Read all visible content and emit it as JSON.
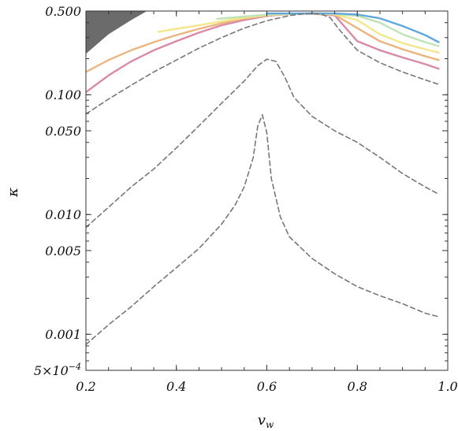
{
  "chart_data": {
    "type": "line",
    "xlabel": "v",
    "xlabel_subscript": "w",
    "ylabel": "κ",
    "x_scale": "linear",
    "y_scale": "log",
    "xlim": [
      0.2,
      1.0
    ],
    "ylim": [
      0.0005,
      0.5
    ],
    "grid": false,
    "x_ticks": [
      {
        "value": 0.2,
        "label": "0.2"
      },
      {
        "value": 0.4,
        "label": "0.4"
      },
      {
        "value": 0.6,
        "label": "0.6"
      },
      {
        "value": 0.8,
        "label": "0.8"
      },
      {
        "value": 1.0,
        "label": "1.0"
      }
    ],
    "y_ticks": [
      {
        "value": 0.5,
        "label": "0.500"
      },
      {
        "value": 0.1,
        "label": "0.100"
      },
      {
        "value": 0.05,
        "label": "0.050"
      },
      {
        "value": 0.01,
        "label": "0.010"
      },
      {
        "value": 0.005,
        "label": "0.005"
      },
      {
        "value": 0.001,
        "label": "0.001"
      },
      {
        "value": 0.0005,
        "label": "5×10",
        "label_exp": "−4"
      }
    ],
    "shaded_region": {
      "color": "#6b6b6b",
      "boundary": [
        [
          0.2,
          0.22
        ],
        [
          0.25,
          0.32
        ],
        [
          0.3,
          0.42
        ],
        [
          0.335,
          0.5
        ]
      ]
    },
    "series": [
      {
        "style": "solid",
        "color": "#d98aa8",
        "points": [
          [
            0.2,
            0.105
          ],
          [
            0.25,
            0.145
          ],
          [
            0.3,
            0.19
          ],
          [
            0.35,
            0.235
          ],
          [
            0.4,
            0.28
          ],
          [
            0.45,
            0.33
          ],
          [
            0.5,
            0.38
          ],
          [
            0.55,
            0.42
          ],
          [
            0.6,
            0.455
          ],
          [
            0.65,
            0.472
          ],
          [
            0.7,
            0.475
          ],
          [
            0.75,
            0.46
          ],
          [
            0.8,
            0.28
          ],
          [
            0.85,
            0.235
          ],
          [
            0.9,
            0.205
          ],
          [
            0.95,
            0.18
          ],
          [
            0.98,
            0.165
          ]
        ]
      },
      {
        "style": "solid",
        "color": "#ecb47e",
        "points": [
          [
            0.2,
            0.155
          ],
          [
            0.25,
            0.195
          ],
          [
            0.3,
            0.235
          ],
          [
            0.35,
            0.275
          ],
          [
            0.4,
            0.315
          ],
          [
            0.45,
            0.355
          ],
          [
            0.5,
            0.395
          ],
          [
            0.55,
            0.432
          ],
          [
            0.6,
            0.46
          ],
          [
            0.65,
            0.474
          ],
          [
            0.7,
            0.475
          ],
          [
            0.75,
            0.465
          ],
          [
            0.8,
            0.36
          ],
          [
            0.85,
            0.28
          ],
          [
            0.9,
            0.24
          ],
          [
            0.95,
            0.21
          ],
          [
            0.98,
            0.195
          ]
        ]
      },
      {
        "style": "solid",
        "color": "#f4e68a",
        "points": [
          [
            0.36,
            0.335
          ],
          [
            0.4,
            0.355
          ],
          [
            0.45,
            0.38
          ],
          [
            0.5,
            0.41
          ],
          [
            0.55,
            0.44
          ],
          [
            0.6,
            0.462
          ],
          [
            0.65,
            0.474
          ],
          [
            0.7,
            0.476
          ],
          [
            0.75,
            0.47
          ],
          [
            0.8,
            0.42
          ],
          [
            0.85,
            0.32
          ],
          [
            0.9,
            0.27
          ],
          [
            0.95,
            0.24
          ],
          [
            0.98,
            0.225
          ]
        ]
      },
      {
        "style": "solid",
        "color": "#bfe3b5",
        "points": [
          [
            0.49,
            0.43
          ],
          [
            0.55,
            0.45
          ],
          [
            0.6,
            0.466
          ],
          [
            0.65,
            0.475
          ],
          [
            0.7,
            0.477
          ],
          [
            0.75,
            0.474
          ],
          [
            0.8,
            0.455
          ],
          [
            0.85,
            0.4
          ],
          [
            0.9,
            0.32
          ],
          [
            0.95,
            0.275
          ],
          [
            0.98,
            0.255
          ]
        ]
      },
      {
        "style": "solid",
        "color": "#62a8dc",
        "points": [
          [
            0.6,
            0.477
          ],
          [
            0.65,
            0.477
          ],
          [
            0.7,
            0.478
          ],
          [
            0.75,
            0.477
          ],
          [
            0.8,
            0.468
          ],
          [
            0.85,
            0.435
          ],
          [
            0.9,
            0.375
          ],
          [
            0.95,
            0.315
          ],
          [
            0.98,
            0.275
          ]
        ]
      },
      {
        "style": "dashed",
        "color": "#777777",
        "points": [
          [
            0.2,
            0.069
          ],
          [
            0.25,
            0.092
          ],
          [
            0.3,
            0.12
          ],
          [
            0.35,
            0.155
          ],
          [
            0.4,
            0.195
          ],
          [
            0.45,
            0.245
          ],
          [
            0.5,
            0.3
          ],
          [
            0.55,
            0.36
          ],
          [
            0.6,
            0.415
          ],
          [
            0.65,
            0.458
          ],
          [
            0.68,
            0.474
          ],
          [
            0.7,
            0.476
          ],
          [
            0.72,
            0.472
          ],
          [
            0.74,
            0.44
          ],
          [
            0.76,
            0.35
          ],
          [
            0.8,
            0.235
          ],
          [
            0.85,
            0.185
          ],
          [
            0.9,
            0.155
          ],
          [
            0.95,
            0.133
          ],
          [
            0.98,
            0.122
          ]
        ]
      },
      {
        "style": "dashed",
        "color": "#777777",
        "points": [
          [
            0.2,
            0.0078
          ],
          [
            0.25,
            0.0115
          ],
          [
            0.3,
            0.017
          ],
          [
            0.35,
            0.024
          ],
          [
            0.4,
            0.036
          ],
          [
            0.45,
            0.055
          ],
          [
            0.5,
            0.085
          ],
          [
            0.55,
            0.13
          ],
          [
            0.58,
            0.175
          ],
          [
            0.6,
            0.198
          ],
          [
            0.62,
            0.19
          ],
          [
            0.64,
            0.14
          ],
          [
            0.66,
            0.095
          ],
          [
            0.7,
            0.066
          ],
          [
            0.75,
            0.05
          ],
          [
            0.8,
            0.04
          ],
          [
            0.85,
            0.03
          ],
          [
            0.9,
            0.022
          ],
          [
            0.95,
            0.017
          ],
          [
            0.98,
            0.0148
          ]
        ]
      },
      {
        "style": "dashed",
        "color": "#777777",
        "points": [
          [
            0.2,
            0.00082
          ],
          [
            0.25,
            0.0012
          ],
          [
            0.3,
            0.0017
          ],
          [
            0.35,
            0.0025
          ],
          [
            0.4,
            0.0036
          ],
          [
            0.45,
            0.0052
          ],
          [
            0.5,
            0.0083
          ],
          [
            0.53,
            0.012
          ],
          [
            0.55,
            0.017
          ],
          [
            0.57,
            0.03
          ],
          [
            0.58,
            0.055
          ],
          [
            0.59,
            0.068
          ],
          [
            0.6,
            0.048
          ],
          [
            0.61,
            0.02
          ],
          [
            0.63,
            0.0095
          ],
          [
            0.65,
            0.0065
          ],
          [
            0.7,
            0.0043
          ],
          [
            0.75,
            0.0032
          ],
          [
            0.8,
            0.0025
          ],
          [
            0.85,
            0.0021
          ],
          [
            0.9,
            0.0018
          ],
          [
            0.95,
            0.0015
          ],
          [
            0.98,
            0.0014
          ]
        ]
      }
    ]
  }
}
